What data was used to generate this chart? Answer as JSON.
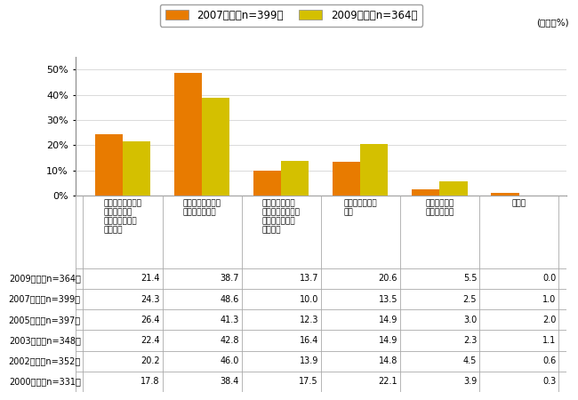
{
  "unit_label": "(単位：%)",
  "legend_2007": "2007年度（n=399）",
  "legend_2009": "2009年度（n=364）",
  "color_2007": "#E87B00",
  "color_2009": "#D4C000",
  "vals_2007": [
    24.3,
    48.6,
    10.0,
    13.5,
    2.5,
    1.0
  ],
  "vals_2009": [
    21.4,
    38.7,
    13.7,
    20.6,
    5.5,
    0.0
  ],
  "ylim": [
    0,
    55
  ],
  "yticks": [
    0,
    10,
    20,
    30,
    40,
    50
  ],
  "ytick_labels": [
    "0%",
    "10%",
    "20%",
    "30%",
    "40%",
    "50%"
  ],
  "cat_labels": [
    "油を使った料理は\n全てこの様な\n健康志向の油を\n使いたい",
    "一部の油を使った\n料理に使いたい",
    "料理を食べる人\n（ご主人・お子様\n等）により使い\n分けたい",
    "あまり使いたく\nない",
    "まったく使う\nつもりはない",
    "無回答"
  ],
  "table_rows": [
    {
      "label": "2009年度（n=364）",
      "values": [
        21.4,
        38.7,
        13.7,
        20.6,
        5.5,
        0.0
      ]
    },
    {
      "label": "2007年度（n=399）",
      "values": [
        24.3,
        48.6,
        10.0,
        13.5,
        2.5,
        1.0
      ]
    },
    {
      "label": "2005年度（n=397）",
      "values": [
        26.4,
        41.3,
        12.3,
        14.9,
        3.0,
        2.0
      ]
    },
    {
      "label": "2003年度（n=348）",
      "values": [
        22.4,
        42.8,
        16.4,
        14.9,
        2.3,
        1.1
      ]
    },
    {
      "label": "2002年度（n=352）",
      "values": [
        20.2,
        46.0,
        13.9,
        14.8,
        4.5,
        0.6
      ]
    },
    {
      "label": "2000年度（n=331）",
      "values": [
        17.8,
        38.4,
        17.5,
        22.1,
        3.9,
        0.3
      ]
    }
  ],
  "bar_width": 0.35
}
